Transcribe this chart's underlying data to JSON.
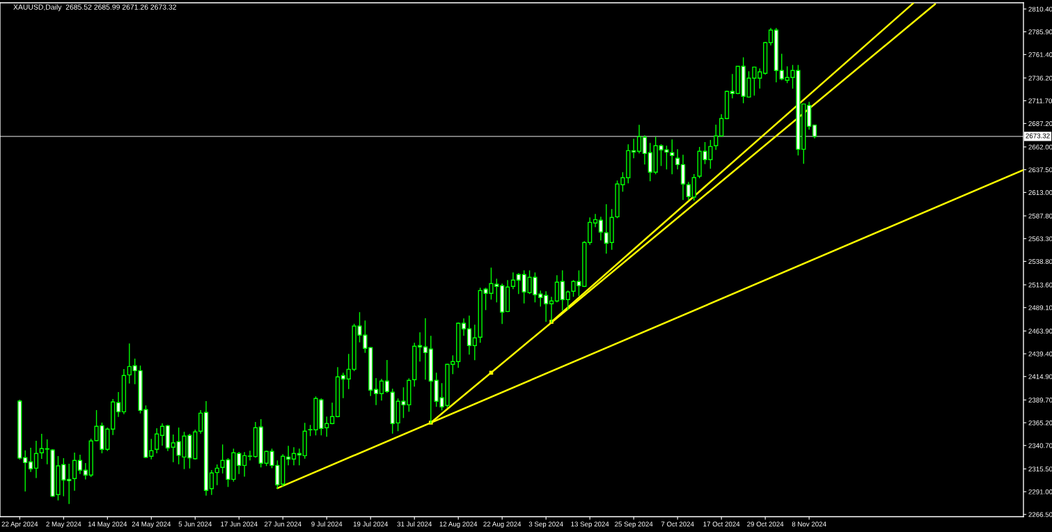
{
  "chart_data": {
    "type": "candlestick",
    "title": "XAUUSD,Daily  2685.52 2685.99 2671.26 2673.32",
    "color": "#00ff00",
    "categories": [
      "22 Apr 2024",
      null,
      null,
      null,
      null,
      null,
      null,
      null,
      "2 May 2024",
      null,
      null,
      null,
      null,
      null,
      null,
      null,
      "14 May 2024",
      null,
      null,
      null,
      null,
      null,
      null,
      null,
      "24 May 2024",
      null,
      null,
      null,
      null,
      null,
      null,
      null,
      "5 Jun 2024",
      null,
      null,
      null,
      null,
      null,
      null,
      null,
      "17 Jun 2024",
      null,
      null,
      null,
      null,
      null,
      null,
      null,
      "27 Jun 2024",
      null,
      null,
      null,
      null,
      null,
      null,
      null,
      "9 Jul 2024",
      null,
      null,
      null,
      null,
      null,
      null,
      null,
      "19 Jul 2024",
      null,
      null,
      null,
      null,
      null,
      null,
      null,
      "31 Jul 2024",
      null,
      null,
      null,
      null,
      null,
      null,
      null,
      "12 Aug 2024",
      null,
      null,
      null,
      null,
      null,
      null,
      null,
      "22 Aug 2024",
      null,
      null,
      null,
      null,
      null,
      null,
      null,
      "3 Sep 2024",
      null,
      null,
      null,
      null,
      null,
      null,
      null,
      "13 Sep 2024",
      null,
      null,
      null,
      null,
      null,
      null,
      null,
      "25 Sep 2024",
      null,
      null,
      null,
      null,
      null,
      null,
      null,
      "7 Oct 2024",
      null,
      null,
      null,
      null,
      null,
      null,
      null,
      "17 Oct 2024",
      null,
      null,
      null,
      null,
      null,
      null,
      null,
      "29 Oct 2024",
      null,
      null,
      null,
      null,
      null,
      null,
      null,
      "8 Nov 2024",
      null,
      null,
      null,
      null,
      null,
      null,
      null,
      null,
      null,
      null,
      null,
      null,
      null,
      null,
      null,
      null,
      null,
      null,
      null,
      null,
      null,
      null,
      null,
      null,
      null,
      null,
      null,
      null,
      null,
      null,
      null,
      null,
      null,
      null,
      null,
      null,
      null,
      null,
      null
    ],
    "ohlc": [
      [
        2388.5,
        2390.0,
        2325.6,
        2327.1
      ],
      [
        2327.6,
        2335.5,
        2291.3,
        2322.3
      ],
      [
        2323.1,
        2338.3,
        2312.3,
        2315.6
      ],
      [
        2316.3,
        2345.8,
        2305.6,
        2332.1
      ],
      [
        2332.8,
        2353.3,
        2326.3,
        2337.3
      ],
      [
        2337.2,
        2347.3,
        2320.5,
        2336.8
      ],
      [
        2335.8,
        2336.8,
        2285.3,
        2286.1
      ],
      [
        2287.9,
        2329.3,
        2281.6,
        2318.8
      ],
      [
        2320.1,
        2327.1,
        2286.1,
        2303.6
      ],
      [
        2304.3,
        2321.1,
        2277.8,
        2302.9
      ],
      [
        2305.1,
        2333.1,
        2292.1,
        2324.6
      ],
      [
        2324.6,
        2330.8,
        2310.0,
        2314.1
      ],
      [
        2314.1,
        2321.8,
        2304.1,
        2308.9
      ],
      [
        2308.9,
        2348.0,
        2306.8,
        2345.6
      ],
      [
        2346.0,
        2378.8,
        2345.3,
        2361.3
      ],
      [
        2362.0,
        2365.3,
        2332.3,
        2336.6
      ],
      [
        2336.6,
        2360.0,
        2334.8,
        2358.3
      ],
      [
        2358.3,
        2390.8,
        2352.0,
        2387.5
      ],
      [
        2386.8,
        2398.2,
        2371.5,
        2377.0
      ],
      [
        2377.0,
        2423.0,
        2374.5,
        2416.0
      ],
      [
        2416.7,
        2450.5,
        2407.5,
        2425.7
      ],
      [
        2426.5,
        2434.2,
        2406.7,
        2421.2
      ],
      [
        2421.2,
        2426.7,
        2375.2,
        2378.5
      ],
      [
        2379.3,
        2383.8,
        2327.3,
        2328.0
      ],
      [
        2329.1,
        2347.8,
        2325.8,
        2335.1
      ],
      [
        2336.6,
        2359.3,
        2332.3,
        2353.1
      ],
      [
        2351.6,
        2364.5,
        2340.5,
        2361.3
      ],
      [
        2362.0,
        2363.0,
        2334.8,
        2338.1
      ],
      [
        2338.8,
        2352.5,
        2322.8,
        2343.5
      ],
      [
        2344.8,
        2360.0,
        2320.5,
        2330.1
      ],
      [
        2328.3,
        2355.5,
        2315.3,
        2350.8
      ],
      [
        2351.6,
        2353.3,
        2316.0,
        2327.3
      ],
      [
        2326.5,
        2357.8,
        2325.8,
        2355.3
      ],
      [
        2356.1,
        2378.8,
        2353.5,
        2375.5
      ],
      [
        2376.3,
        2388.5,
        2286.8,
        2292.4
      ],
      [
        2294.3,
        2314.3,
        2287.6,
        2311.1
      ],
      [
        2311.6,
        2320.3,
        2298.1,
        2316.3
      ],
      [
        2317.1,
        2341.8,
        2310.6,
        2324.6
      ],
      [
        2325.3,
        2327.1,
        2296.1,
        2304.3
      ],
      [
        2304.3,
        2337.3,
        2301.8,
        2332.8
      ],
      [
        2332.1,
        2333.8,
        2310.0,
        2319.3
      ],
      [
        2319.3,
        2333.6,
        2307.1,
        2329.8
      ],
      [
        2329.1,
        2335.1,
        2324.6,
        2329.3
      ],
      [
        2328.8,
        2366.0,
        2327.6,
        2359.8
      ],
      [
        2360.6,
        2369.0,
        2317.1,
        2321.6
      ],
      [
        2321.6,
        2335.1,
        2318.6,
        2334.3
      ],
      [
        2334.3,
        2337.3,
        2316.3,
        2319.3
      ],
      [
        2319.3,
        2324.6,
        2293.9,
        2298.4
      ],
      [
        2299.1,
        2331.3,
        2296.6,
        2329.1
      ],
      [
        2328.3,
        2340.3,
        2319.3,
        2326.1
      ],
      [
        2326.1,
        2338.8,
        2319.3,
        2332.1
      ],
      [
        2332.1,
        2337.3,
        2319.3,
        2330.6
      ],
      [
        2329.8,
        2365.0,
        2326.5,
        2356.1
      ],
      [
        2357.6,
        2362.8,
        2350.8,
        2357.8
      ],
      [
        2357.6,
        2393.5,
        2351.6,
        2391.3
      ],
      [
        2389.8,
        2391.3,
        2351.6,
        2359.1
      ],
      [
        2359.8,
        2371.8,
        2350.1,
        2364.3
      ],
      [
        2364.3,
        2386.8,
        2363.6,
        2371.8
      ],
      [
        2371.8,
        2425.0,
        2371.0,
        2414.5
      ],
      [
        2416.0,
        2419.0,
        2391.7,
        2412.3
      ],
      [
        2412.3,
        2439.2,
        2401.5,
        2422.7
      ],
      [
        2422.7,
        2471.7,
        2420.7,
        2469.2
      ],
      [
        2469.2,
        2484.2,
        2451.7,
        2459.5
      ],
      [
        2459.5,
        2475.2,
        2440.4,
        2445.2
      ],
      [
        2446.0,
        2446.5,
        2394.0,
        2400.3
      ],
      [
        2401.0,
        2413.2,
        2384.2,
        2396.5
      ],
      [
        2396.5,
        2412.5,
        2389.0,
        2410.0
      ],
      [
        2410.0,
        2432.7,
        2397.3,
        2398.8
      ],
      [
        2398.0,
        2401.8,
        2353.5,
        2364.3
      ],
      [
        2365.0,
        2391.3,
        2356.1,
        2388.3
      ],
      [
        2388.3,
        2403.3,
        2370.3,
        2384.5
      ],
      [
        2384.5,
        2413.0,
        2377.0,
        2410.8
      ],
      [
        2411.5,
        2451.2,
        2404.0,
        2447.5
      ],
      [
        2448.2,
        2462.5,
        2431.0,
        2446.7
      ],
      [
        2446.7,
        2477.7,
        2411.5,
        2440.7
      ],
      [
        2444.5,
        2458.7,
        2364.3,
        2410.0
      ],
      [
        2410.8,
        2419.0,
        2382.3,
        2388.3
      ],
      [
        2392.0,
        2407.8,
        2378.5,
        2382.3
      ],
      [
        2383.8,
        2428.5,
        2381.2,
        2428.0
      ],
      [
        2428.0,
        2437.7,
        2417.5,
        2431.0
      ],
      [
        2431.0,
        2472.9,
        2424.2,
        2472.2
      ],
      [
        2472.2,
        2477.4,
        2458.7,
        2466.2
      ],
      [
        2466.2,
        2480.4,
        2438.5,
        2448.2
      ],
      [
        2448.2,
        2470.7,
        2432.5,
        2456.5
      ],
      [
        2457.2,
        2510.4,
        2451.2,
        2507.4
      ],
      [
        2508.9,
        2510.4,
        2486.4,
        2504.4
      ],
      [
        2504.4,
        2532.1,
        2497.7,
        2514.9
      ],
      [
        2514.2,
        2520.2,
        2494.7,
        2511.9
      ],
      [
        2512.7,
        2514.9,
        2471.5,
        2484.2
      ],
      [
        2484.9,
        2518.7,
        2484.2,
        2511.2
      ],
      [
        2511.9,
        2526.9,
        2508.9,
        2518.7
      ],
      [
        2524.7,
        2526.1,
        2503.7,
        2518.7
      ],
      [
        2524.7,
        2529.1,
        2493.6,
        2505.9
      ],
      [
        2505.2,
        2529.1,
        2503.7,
        2521.7
      ],
      [
        2521.7,
        2526.9,
        2494.7,
        2502.9
      ],
      [
        2503.7,
        2507.4,
        2490.2,
        2499.9
      ],
      [
        2502.2,
        2506.7,
        2473.7,
        2493.2
      ],
      [
        2493.2,
        2500.7,
        2472.9,
        2496.2
      ],
      [
        2496.2,
        2523.9,
        2494.7,
        2516.4
      ],
      [
        2517.2,
        2529.1,
        2485.7,
        2497.7
      ],
      [
        2497.7,
        2507.4,
        2486.4,
        2505.9
      ],
      [
        2506.7,
        2518.7,
        2500.7,
        2517.2
      ],
      [
        2517.2,
        2529.1,
        2501.4,
        2512.7
      ],
      [
        2511.9,
        2560.6,
        2511.2,
        2559.1
      ],
      [
        2559.1,
        2586.1,
        2556.6,
        2580.8
      ],
      [
        2580.1,
        2589.8,
        2575.6,
        2583.8
      ],
      [
        2583.1,
        2586.8,
        2561.4,
        2570.4
      ],
      [
        2569.6,
        2600.3,
        2547.1,
        2558.4
      ],
      [
        2559.1,
        2595.1,
        2551.3,
        2586.1
      ],
      [
        2586.8,
        2625.8,
        2585.3,
        2622.1
      ],
      [
        2621.3,
        2634.8,
        2613.8,
        2628.8
      ],
      [
        2628.8,
        2664.8,
        2622.8,
        2658.0
      ],
      [
        2658.0,
        2670.8,
        2649.8,
        2656.5
      ],
      [
        2657.3,
        2685.8,
        2655.0,
        2673.0
      ],
      [
        2672.3,
        2674.5,
        2643.0,
        2655.0
      ],
      [
        2655.8,
        2666.3,
        2625.1,
        2634.8
      ],
      [
        2634.8,
        2673.0,
        2632.6,
        2663.3
      ],
      [
        2663.3,
        2664.8,
        2641.5,
        2658.8
      ],
      [
        2658.8,
        2663.3,
        2637.8,
        2656.5
      ],
      [
        2655.8,
        2670.0,
        2632.6,
        2652.8
      ],
      [
        2649.8,
        2659.5,
        2637.8,
        2643.0
      ],
      [
        2643.0,
        2653.5,
        2604.8,
        2622.1
      ],
      [
        2621.3,
        2624.3,
        2604.8,
        2608.6
      ],
      [
        2608.0,
        2632.8,
        2604.3,
        2629.0
      ],
      [
        2630.5,
        2662.0,
        2628.3,
        2657.3
      ],
      [
        2657.3,
        2667.2,
        2643.5,
        2648.3
      ],
      [
        2648.3,
        2669.5,
        2638.5,
        2662.5
      ],
      [
        2663.3,
        2686.0,
        2658.8,
        2673.8
      ],
      [
        2673.8,
        2697.2,
        2673.0,
        2692.5
      ],
      [
        2692.5,
        2722.5,
        2691.7,
        2721.7
      ],
      [
        2721.7,
        2740.4,
        2714.2,
        2719.5
      ],
      [
        2719.5,
        2749.0,
        2718.7,
        2748.7
      ],
      [
        2748.7,
        2758.4,
        2709.0,
        2716.5
      ],
      [
        2715.7,
        2743.4,
        2715.0,
        2736.0
      ],
      [
        2736.0,
        2748.2,
        2717.2,
        2747.9
      ],
      [
        2736.0,
        2746.4,
        2724.7,
        2742.7
      ],
      [
        2741.2,
        2774.9,
        2739.7,
        2774.2
      ],
      [
        2774.2,
        2789.9,
        2771.2,
        2787.7
      ],
      [
        2787.7,
        2789.9,
        2731.5,
        2744.2
      ],
      [
        2744.2,
        2762.2,
        2733.7,
        2735.2
      ],
      [
        2733.7,
        2748.7,
        2730.7,
        2736.7
      ],
      [
        2736.7,
        2750.2,
        2724.7,
        2744.2
      ],
      [
        2744.2,
        2750.2,
        2652.8,
        2659.5
      ],
      [
        2659.5,
        2708.5,
        2643.8,
        2708.2
      ],
      [
        2706.7,
        2710.5,
        2680.5,
        2684.2
      ],
      [
        2685.52,
        2685.99,
        2671.26,
        2673.32
      ],
      null,
      null,
      null,
      null,
      null,
      null,
      null,
      null,
      null,
      null,
      null,
      null,
      null,
      null,
      null,
      null,
      null,
      null,
      null,
      null,
      null,
      null,
      null,
      null,
      null,
      null,
      null,
      null,
      null,
      null,
      null,
      null,
      null,
      null,
      null,
      null,
      null,
      null
    ],
    "series": [
      {
        "type": "line",
        "color": "#ffff00",
        "values": [
          null,
          null,
          null,
          null,
          null,
          null,
          null,
          null,
          null,
          null,
          null,
          null,
          null,
          null,
          null,
          null,
          null,
          null,
          null,
          null,
          null,
          null,
          null,
          null,
          null,
          null,
          null,
          null,
          null,
          null,
          null,
          null,
          null,
          null,
          null,
          null,
          null,
          null,
          null,
          null,
          null,
          null,
          null,
          null,
          null,
          null,
          null,
          2294.8,
          null,
          null,
          null,
          null,
          null,
          null,
          null,
          null,
          null,
          null,
          null,
          null,
          null,
          null,
          null,
          null,
          null,
          null,
          null,
          null,
          null,
          null,
          null,
          null,
          null,
          null,
          null,
          null,
          null,
          null,
          null,
          null,
          null,
          null,
          null,
          null,
          null,
          null,
          null,
          null,
          null,
          null,
          null,
          null,
          null,
          null,
          null,
          null,
          null,
          null,
          null,
          null,
          null,
          null,
          null,
          null,
          null,
          null,
          null,
          null,
          null,
          null,
          null,
          null,
          null,
          null,
          null,
          null,
          null,
          null,
          null,
          null,
          null,
          null,
          null,
          null,
          null,
          null,
          null,
          null,
          null,
          null,
          null,
          null,
          null,
          null,
          null,
          null,
          null,
          null,
          null,
          null,
          null,
          null,
          null,
          null,
          null,
          null,
          null,
          null,
          null,
          null,
          null,
          null,
          null,
          null,
          null,
          null,
          null,
          null,
          null,
          null,
          null,
          null,
          null,
          null,
          null,
          null,
          null,
          null,
          null,
          null,
          null,
          null,
          null,
          null,
          null,
          null,
          null,
          null,
          null,
          null,
          null,
          null,
          null,
          2637.0
        ]
      },
      {
        "type": "line",
        "color": "#ffff00",
        "values": [
          null,
          null,
          null,
          null,
          null,
          null,
          null,
          null,
          null,
          null,
          null,
          null,
          null,
          null,
          null,
          null,
          null,
          null,
          null,
          null,
          null,
          null,
          null,
          null,
          null,
          null,
          null,
          null,
          null,
          null,
          null,
          null,
          null,
          null,
          null,
          null,
          null,
          null,
          null,
          null,
          null,
          null,
          null,
          null,
          null,
          null,
          null,
          null,
          null,
          null,
          null,
          null,
          null,
          null,
          null,
          null,
          null,
          null,
          null,
          null,
          null,
          null,
          null,
          null,
          null,
          null,
          null,
          null,
          null,
          null,
          null,
          null,
          null,
          null,
          null,
          2365.3,
          null,
          null,
          null,
          null,
          null,
          null,
          null,
          null,
          null,
          null,
          null,
          null,
          null,
          null,
          null,
          null,
          null,
          null,
          null,
          null,
          null,
          null,
          null,
          null,
          null,
          null,
          null,
          null,
          null,
          null,
          null,
          null,
          null,
          null,
          null,
          null,
          null,
          null,
          null,
          null,
          null,
          null,
          null,
          null,
          null,
          null,
          null,
          null,
          null,
          null,
          null,
          null,
          null,
          null,
          null,
          null,
          null,
          null,
          null,
          null,
          null,
          null,
          null,
          null,
          null,
          null,
          null,
          null,
          null,
          null,
          null,
          null,
          null,
          null,
          null,
          null,
          null,
          null,
          null,
          null,
          null,
          null,
          null,
          null,
          null,
          null,
          null,
          null,
          null,
          null,
          null,
          2815.8,
          null,
          null,
          null,
          null,
          null,
          null,
          null,
          null,
          null,
          null,
          null,
          null,
          null,
          null,
          null,
          null
        ]
      },
      {
        "type": "line",
        "color": "#ffff00",
        "values": [
          null,
          null,
          null,
          null,
          null,
          null,
          null,
          null,
          null,
          null,
          null,
          null,
          null,
          null,
          null,
          null,
          null,
          null,
          null,
          null,
          null,
          null,
          null,
          null,
          null,
          null,
          null,
          null,
          null,
          null,
          null,
          null,
          null,
          null,
          null,
          null,
          null,
          null,
          null,
          null,
          null,
          null,
          null,
          null,
          null,
          null,
          null,
          null,
          null,
          null,
          null,
          null,
          null,
          null,
          null,
          null,
          null,
          null,
          null,
          null,
          null,
          null,
          null,
          null,
          null,
          null,
          null,
          null,
          null,
          null,
          null,
          null,
          null,
          null,
          null,
          null,
          null,
          null,
          null,
          null,
          null,
          null,
          null,
          null,
          null,
          null,
          null,
          null,
          null,
          null,
          null,
          null,
          null,
          null,
          null,
          null,
          null,
          2473.8,
          null,
          null,
          null,
          null,
          null,
          null,
          null,
          null,
          null,
          null,
          null,
          null,
          null,
          null,
          null,
          null,
          null,
          null,
          null,
          null,
          null,
          null,
          null,
          null,
          null,
          null,
          null,
          null,
          null,
          null,
          null,
          null,
          null,
          null,
          null,
          null,
          null,
          null,
          null,
          null,
          null,
          null,
          null,
          null,
          null,
          null,
          null,
          null,
          null,
          null,
          null,
          null,
          null,
          null,
          null,
          null,
          null,
          null,
          null,
          null,
          null,
          null,
          null,
          null,
          null,
          2816.6,
          null,
          null,
          null,
          null,
          null,
          null,
          null,
          null,
          null,
          null,
          null,
          null,
          null,
          null,
          null,
          null,
          null,
          null,
          null,
          null
        ]
      },
      {
        "type": "scatter",
        "color": "#ffff00",
        "marker": "square",
        "values": [
          null,
          null,
          null,
          null,
          null,
          null,
          null,
          null,
          null,
          null,
          null,
          null,
          null,
          null,
          null,
          null,
          null,
          null,
          null,
          null,
          null,
          null,
          null,
          null,
          null,
          null,
          null,
          null,
          null,
          null,
          null,
          null,
          null,
          null,
          null,
          null,
          null,
          null,
          null,
          null,
          null,
          null,
          null,
          null,
          null,
          null,
          null,
          null,
          null,
          null,
          null,
          null,
          null,
          null,
          null,
          null,
          null,
          null,
          null,
          null,
          null,
          null,
          null,
          null,
          null,
          null,
          null,
          null,
          null,
          null,
          null,
          null,
          null,
          null,
          null,
          2365.3,
          null,
          null,
          null,
          null,
          null,
          null,
          null,
          null,
          null,
          null,
          2419.0,
          null,
          null,
          null,
          null,
          null,
          null,
          null,
          null,
          null,
          null,
          2473.8,
          null,
          null,
          null,
          null,
          null,
          null,
          null,
          null,
          null,
          null,
          null,
          null,
          null,
          null,
          null,
          null,
          null,
          null,
          null,
          null,
          null,
          null,
          null,
          null,
          null,
          null,
          null,
          null,
          null,
          null,
          null,
          null,
          null,
          null,
          null,
          null,
          null,
          null,
          null,
          null,
          null,
          null,
          null,
          null,
          null,
          null,
          null,
          null,
          null,
          null,
          null,
          null,
          null,
          null,
          null,
          null,
          null,
          null,
          null,
          null,
          null,
          null,
          null,
          null,
          null,
          null,
          null,
          null,
          null,
          null,
          null,
          null,
          null,
          null,
          null,
          null,
          null,
          null,
          null,
          null,
          null,
          null,
          null,
          null,
          null,
          null
        ]
      }
    ],
    "ylim": [
      2264.1,
      2817.1
    ],
    "yticks": [
      {
        "value": 2810.4,
        "label": "2810.40"
      },
      {
        "value": 2785.9,
        "label": "2785.90"
      },
      {
        "value": 2761.4,
        "label": "2761.40"
      },
      {
        "value": 2736.2,
        "label": "2736.20"
      },
      {
        "value": 2711.7,
        "label": "2711.70"
      },
      {
        "value": 2687.2,
        "label": "2687.20"
      },
      {
        "value": 2662.0,
        "label": "2662.00"
      },
      {
        "value": 2637.5,
        "label": "2637.50"
      },
      {
        "value": 2613.0,
        "label": "2613.00"
      },
      {
        "value": 2587.8,
        "label": "2587.80"
      },
      {
        "value": 2563.3,
        "label": "2563.30"
      },
      {
        "value": 2538.8,
        "label": "2538.80"
      },
      {
        "value": 2513.6,
        "label": "2513.60"
      },
      {
        "value": 2489.1,
        "label": "2489.10"
      },
      {
        "value": 2463.9,
        "label": "2463.90"
      },
      {
        "value": 2439.4,
        "label": "2439.40"
      },
      {
        "value": 2414.9,
        "label": "2414.90"
      },
      {
        "value": 2389.7,
        "label": "2389.70"
      },
      {
        "value": 2365.2,
        "label": "2365.20"
      },
      {
        "value": 2340.7,
        "label": "2340.70"
      },
      {
        "value": 2315.5,
        "label": "2315.50"
      },
      {
        "value": 2291.0,
        "label": "2291.00"
      },
      {
        "value": 2266.5,
        "label": "2266.50"
      }
    ],
    "ref_lines": [
      {
        "axis": "y",
        "value": 2673.32,
        "label": "2673.32",
        "color": "#c0c0c0"
      }
    ],
    "grid": false
  }
}
